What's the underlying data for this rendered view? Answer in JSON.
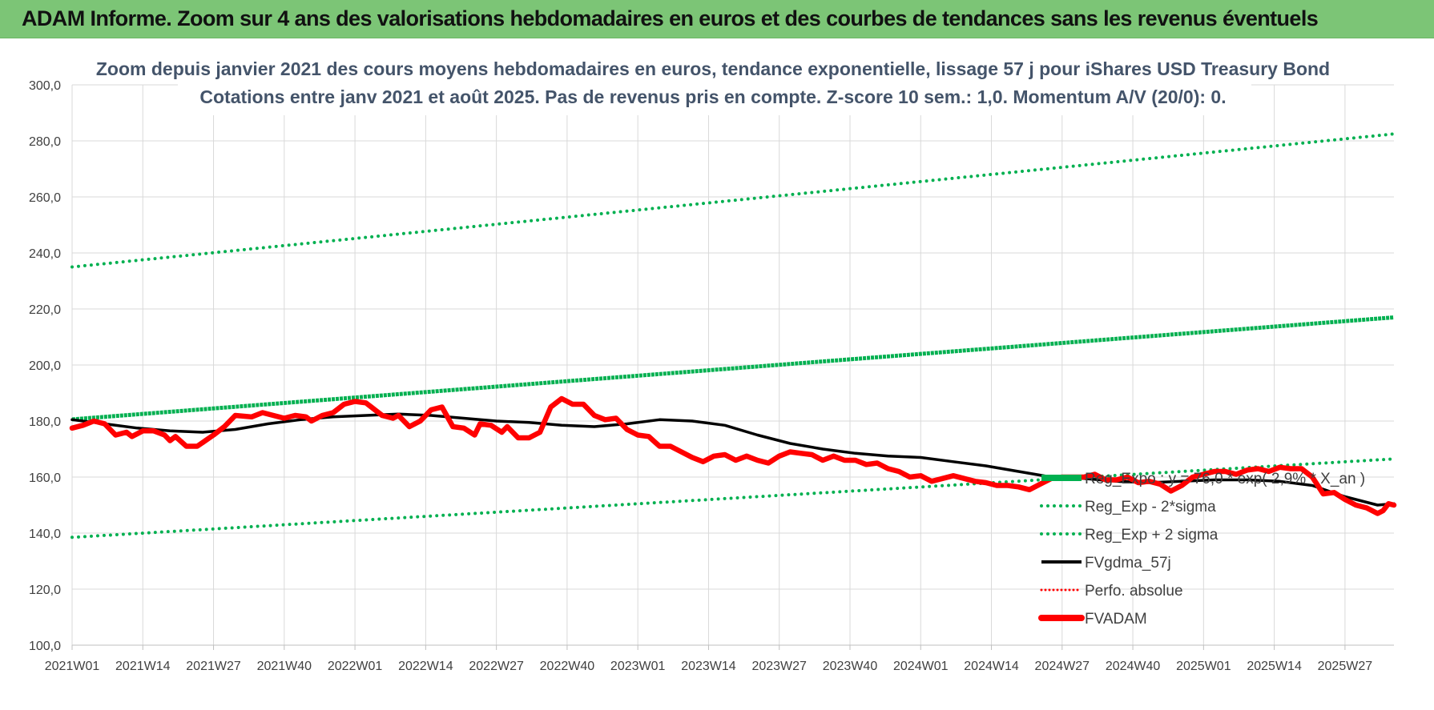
{
  "banner": {
    "text": "ADAM Informe. Zoom sur 4 ans des valorisations hebdomadaires en euros et des courbes de tendances sans les revenus éventuels"
  },
  "chart_data": {
    "type": "line",
    "title": [
      "Zoom depuis janvier 2021 des cours moyens hebdomadaires en euros, tendance exponentielle, lissage 57 j pour iShares USD Treasury Bond",
      "Cotations entre janv 2021 et août 2025. Pas de revenus pris en compte. Z-score 10 sem.: 1,0. Momentum A/V (20/0): 0."
    ],
    "xlabel": "",
    "ylabel": "",
    "ylim": [
      100,
      300
    ],
    "y_ticks": [
      "100,0",
      "120,0",
      "140,0",
      "160,0",
      "180,0",
      "200,0",
      "220,0",
      "240,0",
      "260,0",
      "280,0",
      "300,0"
    ],
    "x_ticks": [
      "2021W01",
      "2021W14",
      "2021W27",
      "2021W40",
      "2022W01",
      "2022W14",
      "2022W27",
      "2022W40",
      "2023W01",
      "2023W14",
      "2023W27",
      "2023W40",
      "2024W01",
      "2024W14",
      "2024W27",
      "2024W40",
      "2025W01",
      "2025W14",
      "2025W27"
    ],
    "x_range_weeks": [
      0,
      243
    ],
    "grid": true,
    "legend_position": "bottom-right",
    "series": [
      {
        "name": "Reg_Expo : y = 76,0 * exp( 2,9% * X_an )",
        "style": "solid-thick",
        "color": "#00b050",
        "points": [
          [
            0,
            180.6
          ],
          [
            243,
            217.0
          ]
        ]
      },
      {
        "name": "Reg_Exp - 2*sigma",
        "style": "dotted",
        "color": "#00b050",
        "points": [
          [
            0,
            138.5
          ],
          [
            243,
            166.5
          ]
        ]
      },
      {
        "name": "Reg_Exp + 2 sigma",
        "style": "dotted",
        "color": "#00b050",
        "points": [
          [
            0,
            235.0
          ],
          [
            243,
            282.5
          ]
        ]
      },
      {
        "name": "FVgdma_57j",
        "style": "solid",
        "color": "#000000",
        "points": [
          [
            0,
            180.5
          ],
          [
            6,
            179
          ],
          [
            12,
            177.5
          ],
          [
            18,
            176.5
          ],
          [
            24,
            176
          ],
          [
            30,
            177
          ],
          [
            36,
            179
          ],
          [
            42,
            180.5
          ],
          [
            48,
            181.5
          ],
          [
            54,
            182
          ],
          [
            60,
            182.5
          ],
          [
            66,
            182
          ],
          [
            72,
            181
          ],
          [
            78,
            180
          ],
          [
            84,
            179.5
          ],
          [
            90,
            178.5
          ],
          [
            96,
            178
          ],
          [
            102,
            179
          ],
          [
            108,
            180.5
          ],
          [
            114,
            180
          ],
          [
            120,
            178.5
          ],
          [
            126,
            175
          ],
          [
            132,
            172
          ],
          [
            138,
            170
          ],
          [
            144,
            168.5
          ],
          [
            150,
            167.5
          ],
          [
            156,
            167
          ],
          [
            162,
            165.5
          ],
          [
            168,
            164
          ],
          [
            174,
            162
          ],
          [
            180,
            160
          ],
          [
            186,
            159.5
          ],
          [
            192,
            158.5
          ],
          [
            198,
            158
          ],
          [
            204,
            158.5
          ],
          [
            210,
            159
          ],
          [
            216,
            159
          ],
          [
            222,
            158.5
          ],
          [
            228,
            157
          ],
          [
            234,
            153
          ],
          [
            240,
            150
          ],
          [
            243,
            150.5
          ]
        ]
      },
      {
        "name": "Perfo. absolue",
        "style": "dotted",
        "color": "#ff0000",
        "points": []
      },
      {
        "name": "FVADAM",
        "style": "solid-thick",
        "color": "#ff0000",
        "points": [
          [
            0,
            177.5
          ],
          [
            2,
            178.5
          ],
          [
            4,
            180
          ],
          [
            6,
            179
          ],
          [
            8,
            175
          ],
          [
            10,
            176
          ],
          [
            11,
            174.5
          ],
          [
            13,
            176.5
          ],
          [
            15,
            176.5
          ],
          [
            17,
            175
          ],
          [
            18,
            173
          ],
          [
            19,
            174.5
          ],
          [
            21,
            171
          ],
          [
            23,
            171
          ],
          [
            26,
            175
          ],
          [
            28,
            178
          ],
          [
            30,
            182
          ],
          [
            33,
            181.5
          ],
          [
            35,
            183
          ],
          [
            37,
            182
          ],
          [
            39,
            181
          ],
          [
            41,
            182
          ],
          [
            43,
            181.5
          ],
          [
            44,
            180
          ],
          [
            46,
            182
          ],
          [
            48,
            183
          ],
          [
            50,
            186
          ],
          [
            52,
            187
          ],
          [
            54,
            186.5
          ],
          [
            55,
            185
          ],
          [
            57,
            182
          ],
          [
            59,
            181
          ],
          [
            60,
            182
          ],
          [
            62,
            178
          ],
          [
            64,
            180
          ],
          [
            66,
            184
          ],
          [
            68,
            185
          ],
          [
            70,
            178
          ],
          [
            72,
            177.5
          ],
          [
            74,
            175
          ],
          [
            75,
            179
          ],
          [
            77,
            178.5
          ],
          [
            79,
            176
          ],
          [
            80,
            178
          ],
          [
            82,
            174
          ],
          [
            84,
            174
          ],
          [
            86,
            176
          ],
          [
            88,
            185
          ],
          [
            90,
            188
          ],
          [
            92,
            186
          ],
          [
            94,
            186
          ],
          [
            96,
            182
          ],
          [
            98,
            180.5
          ],
          [
            100,
            181
          ],
          [
            102,
            177
          ],
          [
            104,
            175
          ],
          [
            106,
            174.5
          ],
          [
            108,
            171
          ],
          [
            110,
            171
          ],
          [
            112,
            169
          ],
          [
            114,
            167
          ],
          [
            116,
            165.5
          ],
          [
            118,
            167.5
          ],
          [
            120,
            168
          ],
          [
            122,
            166
          ],
          [
            124,
            167.5
          ],
          [
            126,
            166
          ],
          [
            128,
            165
          ],
          [
            130,
            167.5
          ],
          [
            132,
            169
          ],
          [
            134,
            168.5
          ],
          [
            136,
            168
          ],
          [
            138,
            166
          ],
          [
            140,
            167.5
          ],
          [
            142,
            166
          ],
          [
            144,
            166
          ],
          [
            146,
            164.5
          ],
          [
            148,
            165
          ],
          [
            150,
            163
          ],
          [
            152,
            162
          ],
          [
            154,
            160
          ],
          [
            156,
            160.5
          ],
          [
            158,
            158.5
          ],
          [
            160,
            159.5
          ],
          [
            162,
            160.5
          ],
          [
            164,
            159.5
          ],
          [
            166,
            158.5
          ],
          [
            168,
            158
          ],
          [
            170,
            157
          ],
          [
            172,
            157
          ],
          [
            174,
            156.5
          ],
          [
            176,
            155.5
          ],
          [
            178,
            157.5
          ],
          [
            180,
            159.5
          ],
          [
            182,
            160
          ],
          [
            184,
            160
          ],
          [
            186,
            160
          ],
          [
            188,
            161
          ],
          [
            190,
            159
          ],
          [
            192,
            159
          ],
          [
            194,
            160
          ],
          [
            196,
            158
          ],
          [
            198,
            158.5
          ],
          [
            200,
            157.5
          ],
          [
            202,
            155
          ],
          [
            204,
            157
          ],
          [
            206,
            160
          ],
          [
            208,
            161
          ],
          [
            210,
            162
          ],
          [
            212,
            162
          ],
          [
            214,
            161
          ],
          [
            216,
            162.5
          ],
          [
            218,
            163
          ],
          [
            220,
            162
          ],
          [
            222,
            163.5
          ],
          [
            224,
            163
          ],
          [
            226,
            163
          ],
          [
            228,
            160
          ],
          [
            230,
            154
          ],
          [
            232,
            154.5
          ],
          [
            234,
            152
          ],
          [
            236,
            150
          ],
          [
            238,
            149
          ],
          [
            240,
            147
          ],
          [
            241,
            148
          ],
          [
            242,
            150.5
          ],
          [
            243,
            150
          ]
        ]
      }
    ]
  }
}
